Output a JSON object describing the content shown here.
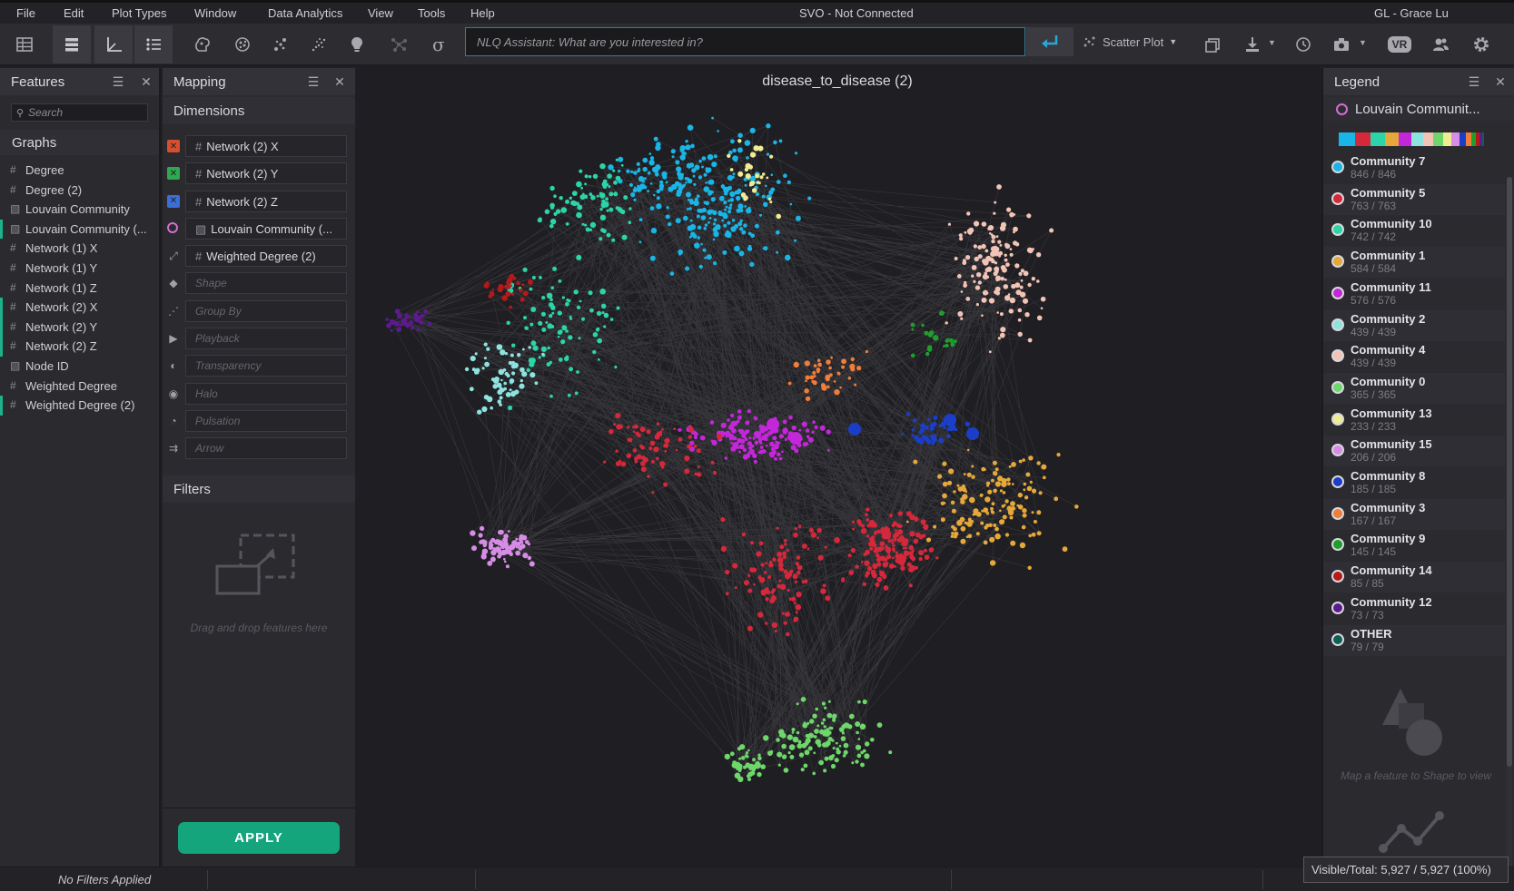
{
  "menu": {
    "items": [
      "File",
      "Edit",
      "Plot Types",
      "Window",
      "Data Analytics",
      "View",
      "Tools",
      "Help"
    ],
    "app_title": "SVO - Not Connected",
    "user": "GL - Grace Lu"
  },
  "toolbar": {
    "nlq_placeholder": "NLQ Assistant: What are you interested in?",
    "plot_type": "Scatter Plot",
    "vr_label": "VR"
  },
  "features": {
    "title": "Features",
    "search_placeholder": "Search",
    "section": "Graphs",
    "items": [
      {
        "label": "Degree",
        "icon": "hash-icon",
        "mapped": false
      },
      {
        "label": "Degree (2)",
        "icon": "hash-icon",
        "mapped": false
      },
      {
        "label": "Louvain Community",
        "icon": "category-icon",
        "mapped": false
      },
      {
        "label": "Louvain Community (...",
        "icon": "category-icon",
        "mapped": true
      },
      {
        "label": "Network (1) X",
        "icon": "hash-icon",
        "mapped": false
      },
      {
        "label": "Network (1) Y",
        "icon": "hash-icon",
        "mapped": false
      },
      {
        "label": "Network (1) Z",
        "icon": "hash-icon",
        "mapped": false
      },
      {
        "label": "Network (2) X",
        "icon": "hash-icon",
        "mapped": true
      },
      {
        "label": "Network (2) Y",
        "icon": "hash-icon",
        "mapped": true
      },
      {
        "label": "Network (2) Z",
        "icon": "hash-icon",
        "mapped": true
      },
      {
        "label": "Node ID",
        "icon": "category-icon",
        "mapped": false
      },
      {
        "label": "Weighted Degree",
        "icon": "hash-icon",
        "mapped": false
      },
      {
        "label": "Weighted Degree (2)",
        "icon": "hash-icon",
        "mapped": true
      }
    ]
  },
  "mapping": {
    "title": "Mapping",
    "dimensions_title": "Dimensions",
    "dimensions": [
      {
        "icon": "x-axis-icon",
        "color": "#d4502e",
        "label": "Network (2) X",
        "kind": "hash"
      },
      {
        "icon": "y-axis-icon",
        "color": "#2fa84f",
        "label": "Network (2) Y",
        "kind": "hash"
      },
      {
        "icon": "z-axis-icon",
        "color": "#3a6fd8",
        "label": "Network (2) Z",
        "kind": "hash"
      },
      {
        "icon": "color-icon",
        "color": "#d46fd1",
        "label": "Louvain Community (...",
        "kind": "category"
      },
      {
        "icon": "size-icon",
        "color": "#a0a0a6",
        "label": "Weighted Degree (2)",
        "kind": "hash"
      },
      {
        "icon": "shape-icon",
        "color": "#a0a0a6",
        "label": "Shape",
        "kind": "empty"
      },
      {
        "icon": "group-by-icon",
        "color": "#a0a0a6",
        "label": "Group By",
        "kind": "empty"
      },
      {
        "icon": "playback-icon",
        "color": "#a0a0a6",
        "label": "Playback",
        "kind": "empty"
      },
      {
        "icon": "transparency-icon",
        "color": "#a0a0a6",
        "label": "Transparency",
        "kind": "empty"
      },
      {
        "icon": "halo-icon",
        "color": "#a0a0a6",
        "label": "Halo",
        "kind": "empty"
      },
      {
        "icon": "pulsation-icon",
        "color": "#a0a0a6",
        "label": "Pulsation",
        "kind": "empty"
      },
      {
        "icon": "arrow-icon",
        "color": "#a0a0a6",
        "label": "Arrow",
        "kind": "empty"
      }
    ],
    "filters_title": "Filters",
    "drop_hint": "Drag and drop features here",
    "apply_label": "APPLY"
  },
  "plot": {
    "title": "disease_to_disease (2)"
  },
  "legend": {
    "title": "Legend",
    "feature": "Louvain Communit...",
    "items": [
      {
        "name": "Community 7",
        "count": "846 / 846",
        "color": "#19b5e6"
      },
      {
        "name": "Community 5",
        "count": "763 / 763",
        "color": "#d5283a"
      },
      {
        "name": "Community 10",
        "count": "742 / 742",
        "color": "#2dd4a8"
      },
      {
        "name": "Community 1",
        "count": "584 / 584",
        "color": "#e6a83a"
      },
      {
        "name": "Community 11",
        "count": "576 / 576",
        "color": "#c426d9"
      },
      {
        "name": "Community 2",
        "count": "439 / 439",
        "color": "#8fe3df"
      },
      {
        "name": "Community 4",
        "count": "439 / 439",
        "color": "#f2c4b6"
      },
      {
        "name": "Community 0",
        "count": "365 / 365",
        "color": "#6fd66b"
      },
      {
        "name": "Community 13",
        "count": "233 / 233",
        "color": "#f0ec92"
      },
      {
        "name": "Community 15",
        "count": "206 / 206",
        "color": "#d78ce6"
      },
      {
        "name": "Community 8",
        "count": "185 / 185",
        "color": "#1b3ec8"
      },
      {
        "name": "Community 3",
        "count": "167 / 167",
        "color": "#f07d3a"
      },
      {
        "name": "Community 9",
        "count": "145 / 145",
        "color": "#1f9e2c"
      },
      {
        "name": "Community 14",
        "count": "85 / 85",
        "color": "#b51919"
      },
      {
        "name": "Community 12",
        "count": "73 / 73",
        "color": "#5d1a8f"
      },
      {
        "name": "OTHER",
        "count": "79 / 79",
        "color": "#0f5f57"
      }
    ],
    "shape_hint": "Map a feature to Shape to view"
  },
  "status": {
    "filters": "No Filters Applied",
    "visible_total": "Visible/Total: 5,927 / 5,927 (100%)"
  }
}
